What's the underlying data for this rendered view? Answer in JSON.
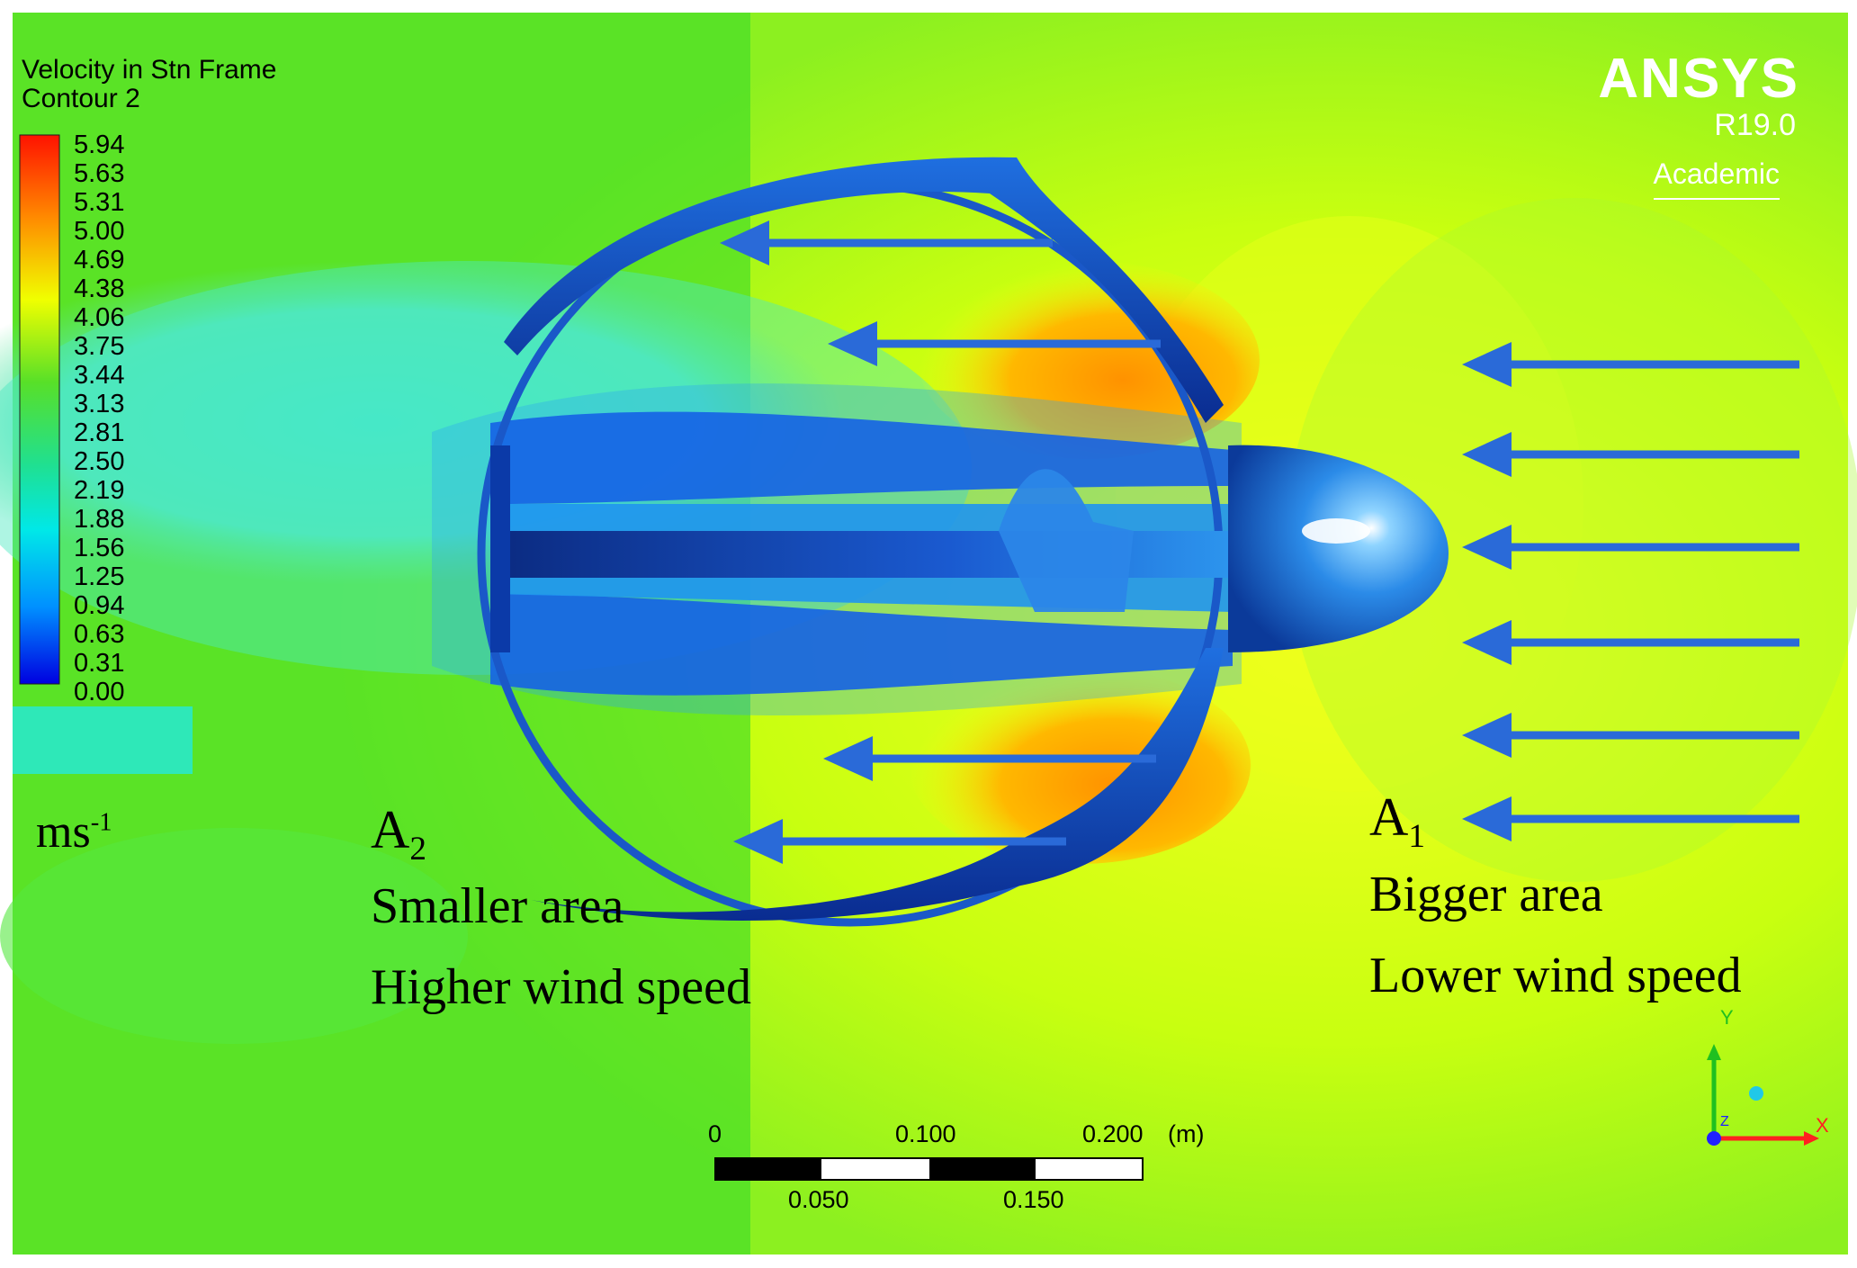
{
  "legend": {
    "title_line1": "Velocity in Stn Frame",
    "title_line2": "Contour 2",
    "ticks": [
      "5.94",
      "5.63",
      "5.31",
      "5.00",
      "4.69",
      "4.38",
      "4.06",
      "3.75",
      "3.44",
      "3.13",
      "2.81",
      "2.50",
      "2.19",
      "1.88",
      "1.56",
      "1.25",
      "0.94",
      "0.63",
      "0.31",
      "0.00"
    ],
    "unit_base": "ms",
    "unit_exp": "-1",
    "colors": {
      "max": "#ff1a00",
      "high": "#ff9a00",
      "mid_high": "#f2ff00",
      "mid": "#48e030",
      "mid_low": "#00e8d0",
      "low": "#0070ff",
      "min": "#0000e8"
    }
  },
  "branding": {
    "logo": "ANSYS",
    "version": "R19.0",
    "edition": "Academic"
  },
  "annotations": {
    "outlet_label": "A",
    "outlet_sub": "2",
    "outlet_line1": "Smaller area",
    "outlet_line2": "Higher wind speed",
    "inlet_label": "A",
    "inlet_sub": "1",
    "inlet_line1": "Bigger area",
    "inlet_line2": "Lower wind speed"
  },
  "scale_bar": {
    "top_labels": [
      "0",
      "0.100",
      "0.200"
    ],
    "unit": "(m)",
    "bottom_labels": [
      "0.050",
      "0.150"
    ]
  },
  "axis_triad": {
    "x": "X",
    "y": "Y",
    "z": "Z",
    "colors": {
      "x": "#ff2020",
      "y": "#20c020",
      "z": "#2020ff"
    }
  },
  "icons": [
    "flow-arrow-icon",
    "axis-triad-icon"
  ]
}
